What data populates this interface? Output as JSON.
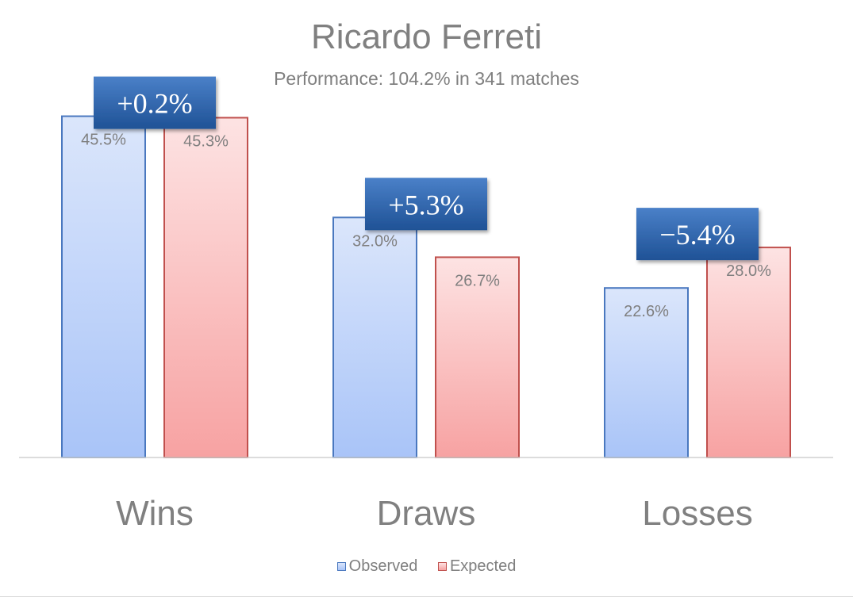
{
  "chart_data": {
    "type": "bar",
    "title": "Ricardo Ferreti",
    "subtitle": "Performance: 104.2% in 341 matches",
    "categories": [
      "Wins",
      "Draws",
      "Losses"
    ],
    "series": [
      {
        "name": "Observed",
        "values": [
          45.5,
          32.0,
          22.6
        ],
        "labels": [
          "45.5%",
          "32.0%",
          "22.6%"
        ]
      },
      {
        "name": "Expected",
        "values": [
          45.3,
          26.7,
          28.0
        ],
        "labels": [
          "45.3%",
          "26.7%",
          "28.0%"
        ]
      }
    ],
    "differences": [
      "+0.2%",
      "+5.3%",
      "−5.4%"
    ],
    "ylim": [
      0,
      50
    ],
    "grid": false,
    "legend": "bottom",
    "colors": {
      "observed_fill_top": "#dbe6fb",
      "observed_fill_bottom": "#a9c4f8",
      "observed_border": "#4a78bf",
      "expected_fill_top": "#fde3e3",
      "expected_fill_bottom": "#f7a2a2",
      "expected_border": "#c0504d",
      "diff_box_top": "#4a80c8",
      "diff_box_bottom": "#1f5296",
      "text": "#7f7f7f"
    }
  }
}
